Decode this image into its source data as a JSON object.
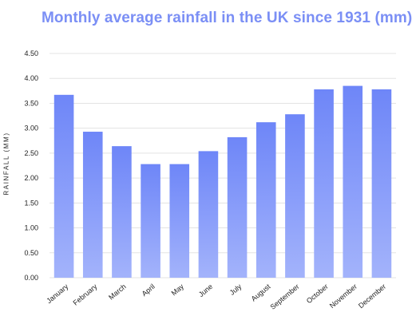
{
  "chart_data": {
    "type": "bar",
    "title": "Monthly average rainfall in the UK since 1931 (mm)",
    "ylabel": "RAINFALL (MM)",
    "xlabel": "",
    "ylim": [
      0,
      4.5
    ],
    "yticks": [
      "0.00",
      "0.50",
      "1.00",
      "1.50",
      "2.00",
      "2.50",
      "3.00",
      "3.50",
      "4.00",
      "4.50"
    ],
    "categories": [
      "January",
      "February",
      "March",
      "April",
      "May",
      "June",
      "July",
      "August",
      "September",
      "October",
      "November",
      "December"
    ],
    "values": [
      3.67,
      2.93,
      2.64,
      2.28,
      2.28,
      2.54,
      2.82,
      3.12,
      3.28,
      3.78,
      3.85,
      3.78
    ],
    "grid": true,
    "legend": "none",
    "colors": {
      "title": "#7b8ff5",
      "bar_top": "#6e86f8",
      "bar_bottom": "#a3b3fb",
      "grid": "#e3e3e3"
    }
  }
}
